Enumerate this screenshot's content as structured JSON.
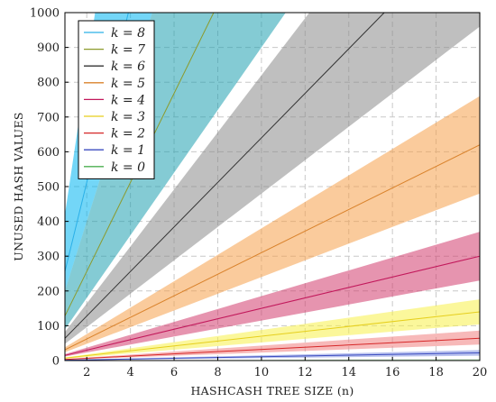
{
  "chart_data": {
    "type": "area",
    "xlabel": "HASHCASH TREE SIZE (n)",
    "ylabel": "UNUSED HASH VALUES",
    "xlim": [
      1,
      20
    ],
    "ylim": [
      0,
      1000
    ],
    "x_ticks": [
      2,
      4,
      6,
      8,
      10,
      12,
      14,
      16,
      18,
      20
    ],
    "y_ticks": [
      0,
      100,
      200,
      300,
      400,
      500,
      600,
      700,
      800,
      900,
      1000
    ],
    "grid": true,
    "legend_position": "top-left",
    "series": [
      {
        "name": "k = 8",
        "color": "#2ab0e8",
        "fill": "#00b4f0",
        "slope": 256,
        "lower_slope": 200,
        "upper_slope": 420
      },
      {
        "name": "k = 7",
        "color": "#8c9a2a",
        "fill": "#1fa0b0",
        "slope": 128,
        "lower_slope": 90,
        "upper_slope": 200
      },
      {
        "name": "k = 6",
        "color": "#333333",
        "fill": "#8a8a8a",
        "slope": 64,
        "lower_slope": 48,
        "upper_slope": 82
      },
      {
        "name": "k = 5",
        "color": "#d9822b",
        "fill": "#f5a04a",
        "slope": 31,
        "lower_slope": 24,
        "upper_slope": 38
      },
      {
        "name": "k = 4",
        "color": "#c2185b",
        "fill": "#d23c6e",
        "slope": 15,
        "lower_slope": 11.5,
        "upper_slope": 18.5
      },
      {
        "name": "k = 3",
        "color": "#e6cf1c",
        "fill": "#f7f048",
        "slope": 7,
        "lower_slope": 5.2,
        "upper_slope": 8.8
      },
      {
        "name": "k = 2",
        "color": "#d62728",
        "fill": "#f08080",
        "slope": 3.2,
        "lower_slope": 2.3,
        "upper_slope": 4.3
      },
      {
        "name": "k = 1",
        "color": "#3b4cc0",
        "fill": "#8090e0",
        "slope": 1.1,
        "lower_slope": 0.7,
        "upper_slope": 1.5
      },
      {
        "name": "k = 0",
        "color": "#4caf50",
        "fill": "#90d090",
        "slope": 0,
        "lower_slope": 0,
        "upper_slope": 0.2
      }
    ]
  }
}
